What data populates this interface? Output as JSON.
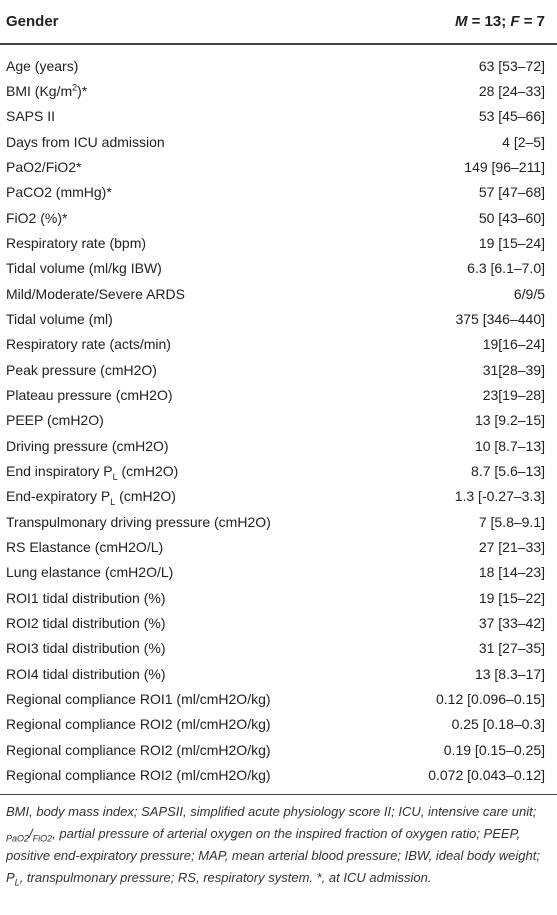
{
  "table": {
    "header": {
      "label": "Gender",
      "value": [
        {
          "text": "M",
          "style": "i"
        },
        {
          "text": " = 13; "
        },
        {
          "text": "F",
          "style": "i"
        },
        {
          "text": " = 7"
        }
      ]
    },
    "rows": [
      [
        "Age (years)",
        "63 [53–72]"
      ],
      [
        [
          {
            "text": "BMI (Kg/m"
          },
          {
            "text": "2",
            "style": "sup"
          },
          {
            "text": ")*"
          }
        ],
        "28 [24–33]"
      ],
      [
        "SAPS II",
        "53 [45–66]"
      ],
      [
        "Days from ICU admission",
        "4 [2–5]"
      ],
      [
        "PaO2/FiO2*",
        "149 [96–211]"
      ],
      [
        "PaCO2 (mmHg)*",
        "57 [47–68]"
      ],
      [
        "FiO2 (%)*",
        "50 [43–60]"
      ],
      [
        "Respiratory rate (bpm)",
        "19 [15–24]"
      ],
      [
        "Tidal volume (ml/kg IBW)",
        "6.3 [6.1–7.0]"
      ],
      [
        "Mild/Moderate/Severe ARDS",
        "6/9/5"
      ],
      [
        "Tidal volume (ml)",
        "375 [346–440]"
      ],
      [
        "Respiratory rate (acts/min)",
        "19[16–24]"
      ],
      [
        "Peak pressure (cmH2O)",
        "31[28–39]"
      ],
      [
        "Plateau pressure (cmH2O)",
        "23[19–28]"
      ],
      [
        "PEEP (cmH2O)",
        "13 [9.2–15]"
      ],
      [
        "Driving pressure (cmH2O)",
        "10 [8.7–13]"
      ],
      [
        [
          {
            "text": "End inspiratory P"
          },
          {
            "text": "L",
            "style": "sub"
          },
          {
            "text": " (cmH2O)"
          }
        ],
        "8.7 [5.6–13]"
      ],
      [
        [
          {
            "text": "End-expiratory P"
          },
          {
            "text": "L",
            "style": "sub"
          },
          {
            "text": " (cmH2O)"
          }
        ],
        "1.3 [-0.27–3.3]"
      ],
      [
        "Transpulmonary driving pressure (cmH2O)",
        "7 [5.8–9.1]"
      ],
      [
        "RS Elastance (cmH2O/L)",
        "27 [21–33]"
      ],
      [
        "Lung elastance (cmH2O/L)",
        "18 [14–23]"
      ],
      [
        "ROI1 tidal distribution (%)",
        "19 [15–22]"
      ],
      [
        "ROI2 tidal distribution (%)",
        "37 [33–42]"
      ],
      [
        "ROI3 tidal distribution (%)",
        "31 [27–35]"
      ],
      [
        "ROI4 tidal distribution (%)",
        "13 [8.3–17]"
      ],
      [
        "Regional compliance ROI1 (ml/cmH2O/kg)",
        "0.12 [0.096–0.15]"
      ],
      [
        "Regional compliance ROI2 (ml/cmH2O/kg)",
        "0.25 [0.18–0.3]"
      ],
      [
        "Regional compliance ROI2 (ml/cmH2O/kg)",
        "0.19 [0.15–0.25]"
      ],
      [
        "Regional compliance ROI2 (ml/cmH2O/kg)",
        "0.072 [0.043–0.12]"
      ]
    ]
  },
  "footnote": [
    {
      "text": "BMI, body mass index; SAPSII, simplified acute physiology score II; ICU, intensive care unit; "
    },
    {
      "text": "PaO2",
      "style": "sub"
    },
    {
      "text": "/"
    },
    {
      "text": "FiO2",
      "style": "sub"
    },
    {
      "text": ", partial pressure of arterial oxygen on the inspired fraction of oxygen ratio; PEEP, positive end-expiratory pressure; MAP, mean arterial blood pressure; IBW, ideal body weight; P"
    },
    {
      "text": "L",
      "style": "sub"
    },
    {
      "text": ", transpulmonary pressure; RS, respiratory system. *, at ICU admission."
    }
  ]
}
